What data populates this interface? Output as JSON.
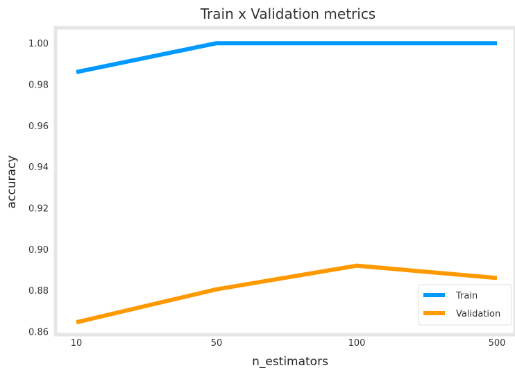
{
  "chart_data": {
    "type": "line",
    "title": "Train x Validation metrics",
    "xlabel": "n_estimators",
    "ylabel": "accuracy",
    "categories": [
      "10",
      "50",
      "100",
      "500"
    ],
    "ylim": [
      0.8585,
      1.0075
    ],
    "yticks": [
      "0.86",
      "0.88",
      "0.90",
      "0.92",
      "0.94",
      "0.96",
      "0.98",
      "1.00"
    ],
    "grid": false,
    "legend_position": "bottom-right",
    "series": [
      {
        "name": "Train",
        "values": [
          0.986,
          1.0,
          1.0,
          1.0
        ],
        "color": "#0099ff"
      },
      {
        "name": "Validation",
        "values": [
          0.8645,
          0.8805,
          0.892,
          0.886
        ],
        "color": "#ff9900"
      }
    ]
  }
}
